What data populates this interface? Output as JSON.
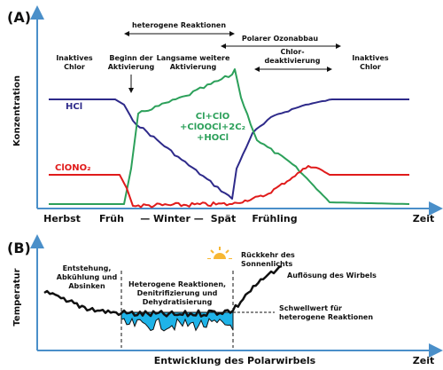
{
  "panel_a": {
    "label": "(A)",
    "y_axis": "Konzentration",
    "top_labels": {
      "heterogeneous": "heterogene Reaktionen",
      "ozone": "Polarer Ozonabbau",
      "deactivation": [
        "Chlor-",
        "deaktivierung"
      ]
    },
    "phase_labels": {
      "inactive_left": [
        "Inaktives",
        "Chlor"
      ],
      "start": [
        "Beginn der",
        "Aktivierung"
      ],
      "slow": [
        "Langsame weitere",
        "Aktivierung"
      ],
      "inactive_right": [
        "Inaktives",
        "Chlor"
      ]
    },
    "series_labels": {
      "hcl": "HCl",
      "clox": [
        "Cl+ClO",
        "+ClOOCl+2C₂",
        "+HOCl"
      ],
      "clono2": "ClONO₂"
    },
    "x_labels": {
      "autumn": "Herbst",
      "early": "Früh",
      "winter": "— Winter —",
      "late": "Spät",
      "spring": "Frühling",
      "time": "Zeit"
    }
  },
  "panel_b": {
    "label": "(B)",
    "y_axis": "Temperatur",
    "x_axis": "Entwicklung des Polarwirbels",
    "time": "Zeit",
    "sun": [
      "Rückkehr des",
      "Sonnenlichts"
    ],
    "formation": [
      "Entstehung,",
      "Abkühlung und",
      "Absinken"
    ],
    "reactions": [
      "Heterogene Reaktionen,",
      "Denitrifizierung und",
      "Dehydratisierung"
    ],
    "breakup": "Auflösung des Wirbels",
    "threshold": [
      "Schwellwert für",
      "heterogene Reaktionen"
    ]
  }
}
